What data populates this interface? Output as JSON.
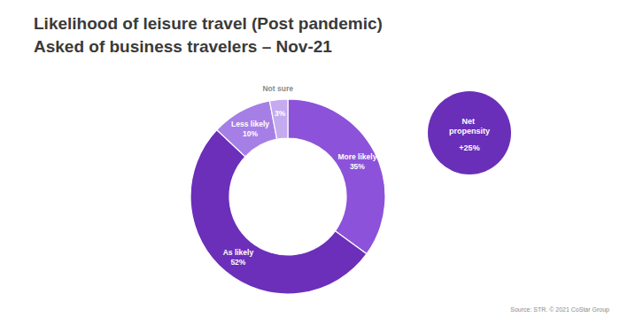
{
  "chart_data": {
    "type": "pie",
    "title": "Likelihood of leisure travel (Post pandemic)",
    "subtitle": "Asked of business travelers – Nov-21",
    "categories": [
      "More likely",
      "As likely",
      "Less likely",
      "Not sure"
    ],
    "values": [
      35,
      52,
      10,
      3
    ],
    "value_labels": [
      "35%",
      "52%",
      "10%",
      "3%"
    ],
    "colors": [
      "#8c52d9",
      "#6b2fba",
      "#a67fe6",
      "#c4aaef"
    ],
    "data_labels": true,
    "annotation": {
      "title": "Net propensity",
      "text": "+25%"
    },
    "source": "Source: STR. © 2021 CoStar Group"
  }
}
